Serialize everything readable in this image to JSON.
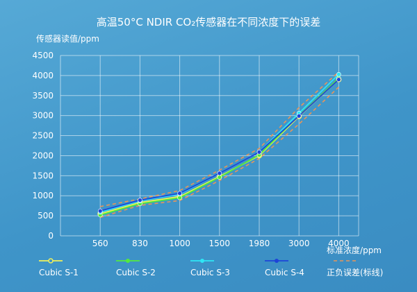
{
  "chart_data": {
    "type": "line",
    "title": "高温50°C NDIR CO₂传感器在不同浓度下的误差",
    "ylabel": "传感器读值/ppm",
    "xlabel": "标准浓度/ppm",
    "categories": [
      "560",
      "830",
      "1000",
      "1500",
      "1980",
      "3000",
      "4000"
    ],
    "yticks": [
      "0",
      "500",
      "1000",
      "1500",
      "2000",
      "2500",
      "3000",
      "3500",
      "4000",
      "4500"
    ],
    "ylim": [
      0,
      4500
    ],
    "grid": true,
    "legend_position": "bottom",
    "series": [
      {
        "name": "Cubic S-1",
        "color": "#f2f25a",
        "marker": "ring",
        "values": [
          550,
          830,
          980,
          1480,
          2000,
          2980,
          3900
        ]
      },
      {
        "name": "Cubic S-2",
        "color": "#54ea3c",
        "marker": "dot",
        "values": [
          520,
          800,
          950,
          1460,
          2020,
          3000,
          3930
        ]
      },
      {
        "name": "Cubic S-3",
        "color": "#2ee6f5",
        "marker": "dot",
        "values": [
          590,
          870,
          1040,
          1560,
          2090,
          3060,
          4030
        ]
      },
      {
        "name": "Cubic S-4",
        "color": "#1d44d8",
        "marker": "dot",
        "values": [
          620,
          890,
          1060,
          1560,
          2090,
          2990,
          3900
        ]
      }
    ],
    "bounds": {
      "name": "正负误差(标线)",
      "color": "#e8955a",
      "upper": [
        730,
        920,
        1130,
        1640,
        2180,
        3200,
        4090
      ],
      "lower": [
        460,
        760,
        880,
        1380,
        1930,
        2790,
        3710
      ]
    }
  }
}
